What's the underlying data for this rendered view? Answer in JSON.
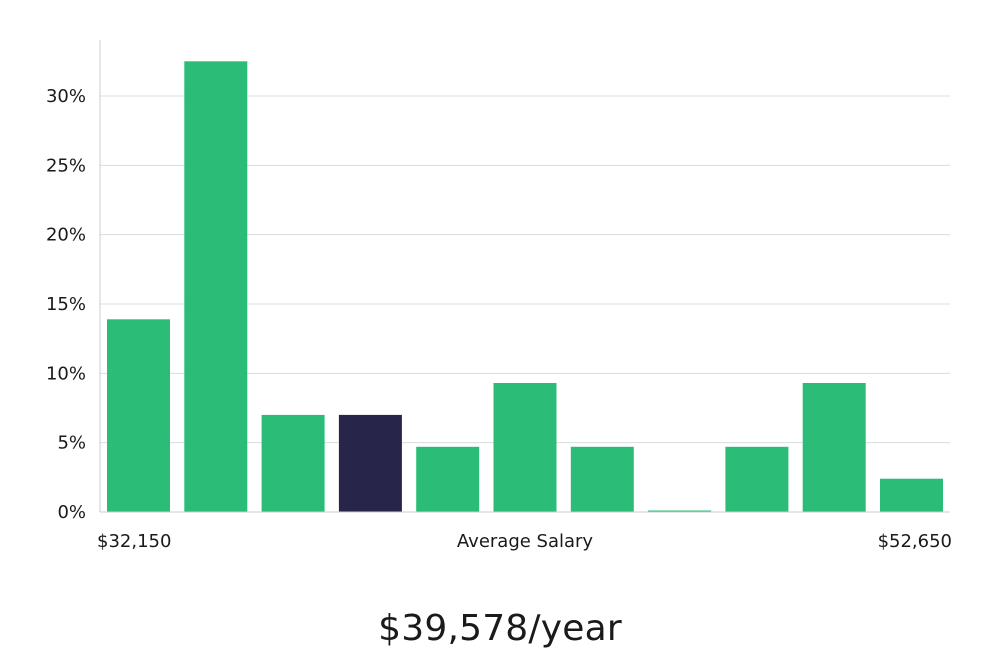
{
  "colors": {
    "bar": "#2bbd77",
    "highlight": "#28254a",
    "grid": "#d9dce1",
    "axis": "#c9ccd1",
    "text": "#1a1a1a"
  },
  "headline": "$39,578/year",
  "chart_data": {
    "type": "bar",
    "values": [
      13.9,
      32.5,
      7.0,
      7.0,
      4.7,
      9.3,
      4.7,
      0.1,
      4.7,
      9.3,
      2.4
    ],
    "highlight_index": 3,
    "ylim": [
      0,
      34
    ],
    "yticks": [
      0,
      5,
      10,
      15,
      20,
      25,
      30
    ],
    "ytick_labels": [
      "0%",
      "5%",
      "10%",
      "15%",
      "20%",
      "25%",
      "30%"
    ],
    "x_min_label": "$32,150",
    "x_max_label": "$52,650",
    "xlabel": "Average Salary",
    "grid": true
  }
}
